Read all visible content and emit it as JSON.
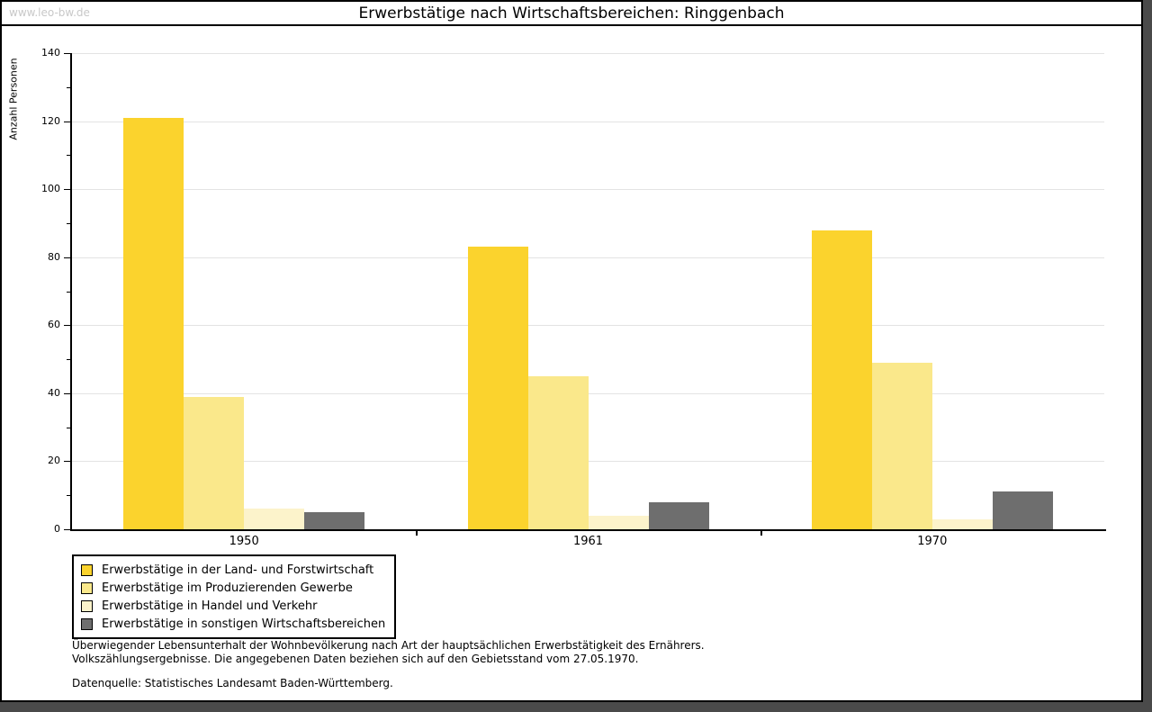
{
  "watermark": "www.leo-bw.de",
  "chart_data": {
    "type": "bar",
    "title": "Erwerbstätige nach Wirtschaftsbereichen: Ringgenbach",
    "ylabel": "Anzahl Personen",
    "xlabel": "",
    "categories": [
      "1950",
      "1961",
      "1970"
    ],
    "series": [
      {
        "name": "Erwerbstätige in der Land- und Forstwirtschaft",
        "color": "#FBD32D",
        "values": [
          121,
          83,
          88
        ]
      },
      {
        "name": "Erwerbstätige im Produzierenden Gewerbe",
        "color": "#FAE88B",
        "values": [
          39,
          45,
          49
        ]
      },
      {
        "name": "Erwerbstätige in Handel und Verkehr",
        "color": "#FCF3CB",
        "values": [
          6,
          4,
          3
        ]
      },
      {
        "name": "Erwerbstätige in sonstigen Wirtschaftsbereichen",
        "color": "#6E6E6E",
        "values": [
          5,
          8,
          11
        ]
      }
    ],
    "ylim": [
      0,
      140
    ],
    "yticks": [
      0,
      20,
      40,
      60,
      80,
      100,
      120,
      140
    ],
    "ytick_step": 20,
    "yminor_step": 10,
    "grid": true,
    "legend_position": "bottom-left"
  },
  "footnotes": {
    "line1": "Überwiegender Lebensunterhalt der Wohnbevölkerung nach Art der hauptsächlichen Erwerbstätigkeit des Ernährers.",
    "line2": "Volkszählungsergebnisse. Die angegebenen Daten beziehen sich auf den Gebietsstand vom 27.05.1970.",
    "source": "Datenquelle: Statistisches Landesamt Baden-Württemberg."
  },
  "colors": {
    "background": "#FFFFFF",
    "axis": "#000000",
    "grid": "#E3E3E3",
    "watermark": "#C8C8C8",
    "frame_shadow": "#4A4A4A"
  }
}
